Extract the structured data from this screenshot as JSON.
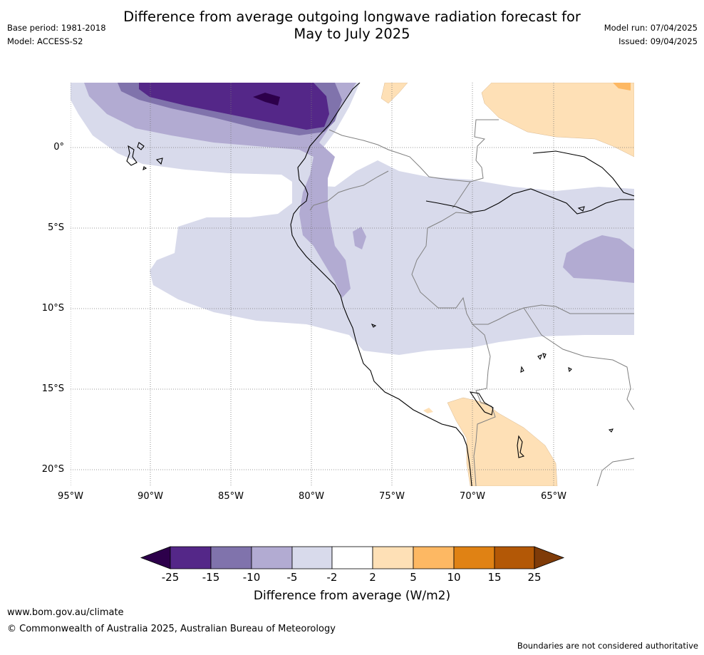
{
  "title_line1": "Difference from average outgoing longwave radiation forecast for",
  "title_line2": "May to July 2025",
  "base_period": "Base period: 1981-2018",
  "model": "Model: ACCESS-S2",
  "model_run": "Model run: 07/04/2025",
  "issued": "Issued: 09/04/2025",
  "lat_labels": [
    "0°",
    "5°S",
    "10°S",
    "15°S",
    "20°S"
  ],
  "lon_labels": [
    "95°W",
    "90°W",
    "85°W",
    "80°W",
    "75°W",
    "70°W",
    "65°W"
  ],
  "colorbar": {
    "ticks": [
      "-25",
      "-15",
      "-10",
      "-5",
      "-2",
      "2",
      "5",
      "10",
      "15",
      "25"
    ],
    "label": "Difference from average (W/m2)",
    "colors": {
      "below_-25": "#2d004b",
      "-25_to_-15": "#542788",
      "-15_to_-10": "#8073ac",
      "-10_to_-5": "#b2abd2",
      "-5_to_-2": "#d8daeb",
      "-2_to_2": "#ffffff",
      "2_to_5": "#fee0b6",
      "5_to_10": "#fdb863",
      "10_to_15": "#e08214",
      "15_to_25": "#b35806",
      "above_25": "#7f3b08"
    }
  },
  "footer_url": "www.bom.gov.au/climate",
  "footer_copyright": "© Commonwealth of Australia 2025, Australian Bureau of Meteorology",
  "footer_note": "Boundaries are not considered authoritative"
}
